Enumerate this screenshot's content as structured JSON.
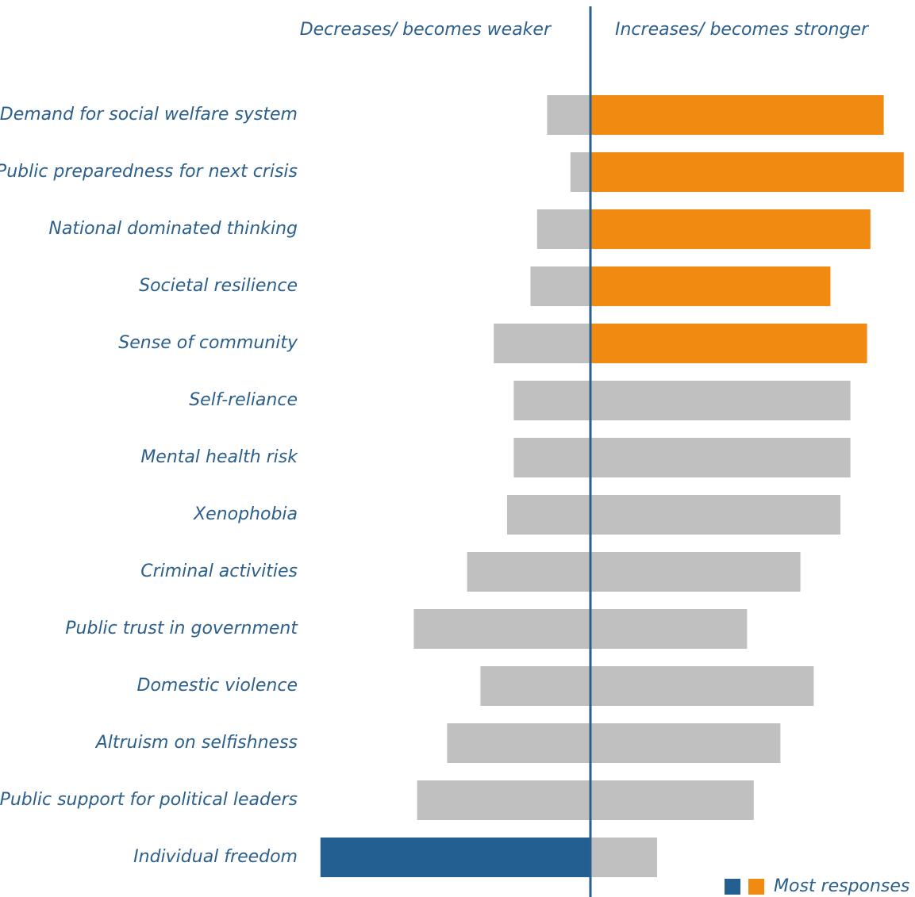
{
  "chart_data": {
    "type": "diverging-bar",
    "left_label": "Decreases/ becomes weaker",
    "right_label": "Increases/ becomes stronger",
    "categories": [
      "Demand for social welfare system",
      "Public preparedness for next crisis",
      "National dominated thinking",
      "Societal resilience",
      "Sense of community",
      "Self-reliance",
      "Mental health risk",
      "Xenophobia",
      "Criminal activities",
      "Public trust in government",
      "Domestic violence",
      "Altruism on selfishness",
      "Public support for political leaders",
      "Individual freedom"
    ],
    "series": [
      {
        "name": "Decreases/ becomes weaker",
        "side": "left",
        "values": [
          13,
          6,
          16,
          18,
          29,
          23,
          23,
          25,
          37,
          53,
          33,
          43,
          52,
          81
        ],
        "colors": [
          "#c0c0c0",
          "#c0c0c0",
          "#c0c0c0",
          "#c0c0c0",
          "#c0c0c0",
          "#c0c0c0",
          "#c0c0c0",
          "#c0c0c0",
          "#c0c0c0",
          "#c0c0c0",
          "#c0c0c0",
          "#c0c0c0",
          "#c0c0c0",
          "#236091"
        ]
      },
      {
        "name": "Increases/ becomes stronger",
        "side": "right",
        "values": [
          88,
          94,
          84,
          72,
          83,
          78,
          78,
          75,
          63,
          47,
          67,
          57,
          49,
          20
        ],
        "colors": [
          "#f08a10",
          "#f08a10",
          "#f08a10",
          "#f08a10",
          "#f08a10",
          "#c0c0c0",
          "#c0c0c0",
          "#c0c0c0",
          "#c0c0c0",
          "#c0c0c0",
          "#c0c0c0",
          "#c0c0c0",
          "#c0c0c0",
          "#c0c0c0"
        ]
      }
    ],
    "legend": {
      "label": "Most responses",
      "colors": [
        "#236091",
        "#f08a10"
      ]
    }
  }
}
